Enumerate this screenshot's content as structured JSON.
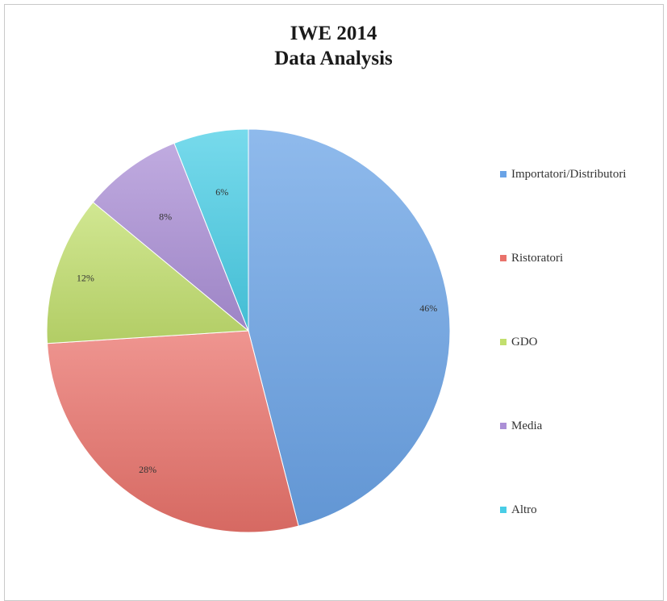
{
  "chart_data": {
    "type": "pie",
    "title_lines": [
      "IWE 2014",
      "Data Analysis"
    ],
    "categories": [
      "Importatori/Distributori",
      "Ristoratori",
      "GDO",
      "Media",
      "Altro"
    ],
    "values": [
      46,
      28,
      12,
      8,
      6
    ],
    "data_labels": [
      "46%",
      "28%",
      "12%",
      "8%",
      "6%"
    ],
    "colors": [
      "#6aa3e6",
      "#e9726b",
      "#c2df6e",
      "#ab8fd6",
      "#49cde6"
    ],
    "legend_position": "right"
  }
}
